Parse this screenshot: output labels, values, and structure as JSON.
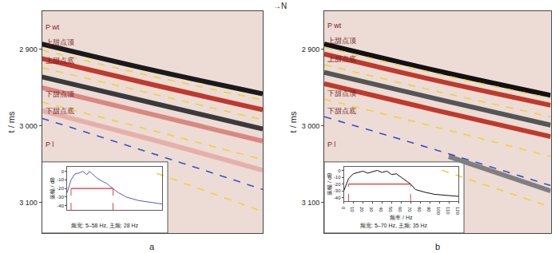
{
  "chart_data": [
    {
      "type": "line",
      "label": "a",
      "ylabel": "t / ms",
      "xlim": [
        0,
        100
      ],
      "ylim": [
        3140,
        2850
      ],
      "yticks": [
        {
          "value": 2900,
          "label": "2 900"
        },
        {
          "value": 3000,
          "label": "3 000"
        },
        {
          "value": 3100,
          "label": "3 100"
        }
      ],
      "tick_labels": "y",
      "grid": false,
      "series": [
        {
          "x": [
            0,
            50,
            100
          ],
          "values": [
            2893,
            2927,
            2958
          ],
          "color": "#1a1a1a",
          "line_style": "solid"
        },
        {
          "x": [
            0,
            50,
            100
          ],
          "values": [
            2912,
            2946,
            2979
          ],
          "color": "#c0392b",
          "line_style": "solid"
        },
        {
          "x": [
            0,
            50,
            100
          ],
          "values": [
            2936,
            2970,
            3004
          ],
          "color": "#3a3a3a",
          "line_style": "solid"
        },
        {
          "x": [
            0,
            50,
            100
          ],
          "values": [
            2950,
            2985,
            3020
          ],
          "color": "#d98880",
          "line_style": "solid"
        },
        {
          "x": [
            0,
            50,
            100
          ],
          "values": [
            2980,
            3018,
            3058
          ],
          "color": "#e6b0aa",
          "line_style": "solid"
        },
        {
          "x": [
            0,
            50,
            100
          ],
          "values": [
            2901,
            2935,
            2966
          ],
          "color": "#f2d03b",
          "line_style": "dash"
        },
        {
          "x": [
            0,
            50,
            100
          ],
          "values": [
            2924,
            2958,
            2992
          ],
          "color": "#f2d03b",
          "line_style": "dash"
        },
        {
          "x": [
            0,
            50,
            100
          ],
          "values": [
            2969,
            3006,
            3044
          ],
          "color": "#f2d03b",
          "line_style": "dash"
        },
        {
          "x": [
            0,
            50,
            100
          ],
          "values": [
            2990,
            3036,
            3083
          ],
          "color": "#3a4fc8",
          "line_style": "dash"
        },
        {
          "x": [
            52,
            100
          ],
          "values": [
            3062,
            3112
          ],
          "color": "#f2d03b",
          "line_style": "dash"
        }
      ],
      "horizon_labels": [
        {
          "text": "P wt",
          "y": 2878
        },
        {
          "text": "上甜点顶",
          "y": 2898
        },
        {
          "text": "上甜点底",
          "y": 2922
        },
        {
          "text": "下甜点顶",
          "y": 2966
        },
        {
          "text": "下甜点底",
          "y": 2988
        },
        {
          "text": "P l",
          "y": 3032
        }
      ],
      "inset": {
        "type": "line",
        "ylabel": "振幅 / dB",
        "xlim": [
          0,
          120
        ],
        "ylim": [
          -45,
          5
        ],
        "yticks": [
          0,
          -10,
          -20,
          -30,
          -40
        ],
        "tick_labels": "y",
        "x": [
          0,
          5,
          10,
          15,
          20,
          25,
          28,
          32,
          38,
          45,
          50,
          55,
          58,
          65,
          75,
          90,
          105,
          120
        ],
        "values": [
          -25,
          -10,
          -3,
          -2,
          0,
          -4,
          0,
          -3,
          -8,
          -12,
          -14,
          -18,
          -20,
          -25,
          -30,
          -34,
          -36,
          -38
        ],
        "color": "#4a5fc1",
        "band": [
          5,
          58
        ],
        "band_level": -20,
        "caption": "频宽: 5–58 Hz, 主频: 28 Hz"
      }
    },
    {
      "type": "line",
      "label": "b",
      "ylabel": "t / ms",
      "xlim": [
        0,
        100
      ],
      "ylim": [
        3140,
        2850
      ],
      "yticks": [
        {
          "value": 2900,
          "label": "2 900"
        },
        {
          "value": 3000,
          "label": "3 000"
        },
        {
          "value": 3100,
          "label": "3 100"
        }
      ],
      "tick_labels": "y",
      "grid": false,
      "annotations": [
        "→N"
      ],
      "series": [
        {
          "x": [
            0,
            50,
            100
          ],
          "values": [
            2893,
            2928,
            2960
          ],
          "color": "#111111",
          "line_style": "solid"
        },
        {
          "x": [
            0,
            50,
            100
          ],
          "values": [
            2906,
            2941,
            2973
          ],
          "color": "#c0392b",
          "line_style": "solid"
        },
        {
          "x": [
            0,
            50,
            100
          ],
          "values": [
            2930,
            2965,
            2999
          ],
          "color": "#555555",
          "line_style": "solid"
        },
        {
          "x": [
            0,
            50,
            100
          ],
          "values": [
            2945,
            2980,
            3014
          ],
          "color": "#c0392b",
          "line_style": "solid"
        },
        {
          "x": [
            55,
            100
          ],
          "values": [
            3040,
            3085
          ],
          "color": "#7f7f7f",
          "line_style": "solid"
        },
        {
          "x": [
            0,
            50,
            100
          ],
          "values": [
            2897,
            2932,
            2964
          ],
          "color": "#f2d03b",
          "line_style": "dash"
        },
        {
          "x": [
            0,
            50,
            100
          ],
          "values": [
            2920,
            2955,
            2988
          ],
          "color": "#f2d03b",
          "line_style": "dash"
        },
        {
          "x": [
            0,
            50,
            100
          ],
          "values": [
            2965,
            3002,
            3040
          ],
          "color": "#f2d03b",
          "line_style": "dash"
        },
        {
          "x": [
            0,
            50,
            100
          ],
          "values": [
            2988,
            3032,
            3078
          ],
          "color": "#3a4fc8",
          "line_style": "dash"
        },
        {
          "x": [
            52,
            100
          ],
          "values": [
            3058,
            3106
          ],
          "color": "#f2d03b",
          "line_style": "dash"
        }
      ],
      "horizon_labels": [
        {
          "text": "P wt",
          "y": 2876
        },
        {
          "text": "上甜点顶",
          "y": 2896
        },
        {
          "text": "上甜点底",
          "y": 2920
        },
        {
          "text": "下甜点顶",
          "y": 2965
        },
        {
          "text": "下甜点底",
          "y": 2988
        },
        {
          "text": "P l",
          "y": 3032
        }
      ],
      "inset": {
        "type": "line",
        "ylabel": "振幅 / dB",
        "xlabel": "频率 / Hz",
        "xlim": [
          0,
          120
        ],
        "ylim": [
          -45,
          5
        ],
        "xticks": [
          0,
          10,
          20,
          30,
          40,
          50,
          60,
          70,
          80,
          90,
          100,
          110,
          120
        ],
        "yticks": [
          0,
          -10,
          -20,
          -30,
          -40
        ],
        "x": [
          0,
          3,
          5,
          10,
          15,
          20,
          25,
          30,
          35,
          40,
          45,
          50,
          55,
          60,
          65,
          70,
          75,
          85,
          95,
          110,
          120
        ],
        "values": [
          -30,
          -20,
          -12,
          -5,
          -3,
          -1,
          -4,
          -2,
          0,
          -3,
          -1,
          -6,
          -5,
          -10,
          -15,
          -20,
          -28,
          -32,
          -35,
          -37,
          -38
        ],
        "color": "#111111",
        "band": [
          5,
          70
        ],
        "band_level": -20,
        "caption": "频宽: 5–70 Hz, 主频: 35 Hz"
      }
    }
  ]
}
